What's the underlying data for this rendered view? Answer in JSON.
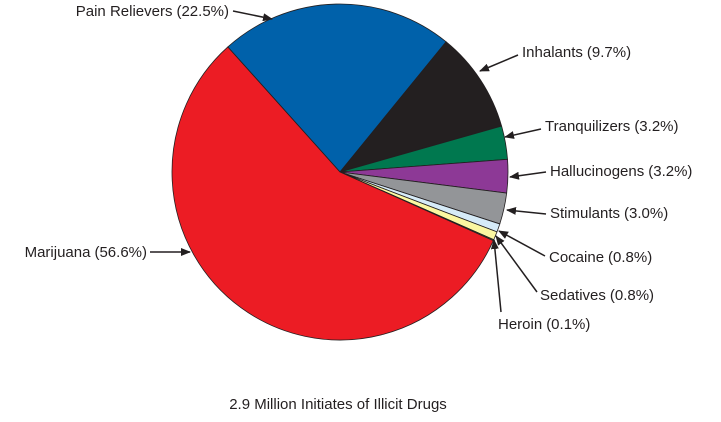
{
  "chart_data": {
    "type": "pie",
    "title": "2.9 Million Initiates of Illicit Drugs",
    "categories": [
      "Pain Relievers",
      "Inhalants",
      "Tranquilizers",
      "Hallucinogens",
      "Stimulants",
      "Cocaine",
      "Sedatives",
      "Heroin",
      "Marijuana"
    ],
    "values": [
      22.5,
      9.7,
      3.2,
      3.2,
      3.0,
      0.8,
      0.8,
      0.1,
      56.6
    ],
    "value_labels": [
      "(22.5%)",
      "(9.7%)",
      "(3.2%)",
      "(3.2%)",
      "(3.0%)",
      "(0.8%)",
      "(0.8%)",
      "(0.1%)",
      "(56.6%)"
    ],
    "colors": [
      "#0061aa",
      "#231f20",
      "#00784f",
      "#8d3996",
      "#939598",
      "#d6ebf8",
      "#fbf7a1",
      "#6d8d3b",
      "#ec1c24"
    ]
  }
}
